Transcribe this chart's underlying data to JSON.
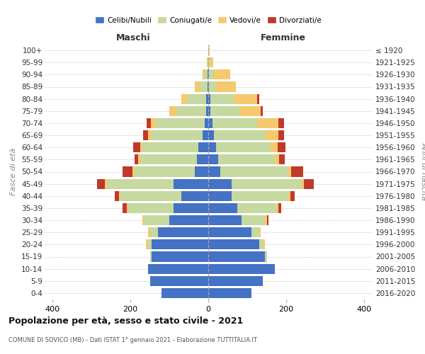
{
  "age_groups": [
    "0-4",
    "5-9",
    "10-14",
    "15-19",
    "20-24",
    "25-29",
    "30-34",
    "35-39",
    "40-44",
    "45-49",
    "50-54",
    "55-59",
    "60-64",
    "65-69",
    "70-74",
    "75-79",
    "80-84",
    "85-89",
    "90-94",
    "95-99",
    "100+"
  ],
  "birth_years": [
    "2016-2020",
    "2011-2015",
    "2006-2010",
    "2001-2005",
    "1996-2000",
    "1991-1995",
    "1986-1990",
    "1981-1985",
    "1976-1980",
    "1971-1975",
    "1966-1970",
    "1961-1965",
    "1956-1960",
    "1951-1955",
    "1946-1950",
    "1941-1945",
    "1936-1940",
    "1931-1935",
    "1926-1930",
    "1921-1925",
    "≤ 1920"
  ],
  "maschi": {
    "celibi": [
      120,
      150,
      155,
      145,
      145,
      130,
      100,
      90,
      70,
      90,
      35,
      30,
      25,
      15,
      10,
      5,
      5,
      2,
      2,
      0,
      0
    ],
    "coniugati": [
      0,
      0,
      0,
      5,
      10,
      20,
      65,
      115,
      155,
      170,
      155,
      145,
      145,
      130,
      125,
      75,
      50,
      18,
      5,
      2,
      0
    ],
    "vedovi": [
      0,
      0,
      0,
      0,
      5,
      5,
      5,
      5,
      5,
      5,
      5,
      5,
      5,
      10,
      12,
      20,
      15,
      15,
      8,
      2,
      0
    ],
    "divorziati": [
      0,
      0,
      0,
      0,
      0,
      0,
      0,
      10,
      10,
      20,
      25,
      10,
      18,
      12,
      12,
      0,
      0,
      0,
      0,
      0,
      0
    ]
  },
  "femmine": {
    "nubili": [
      110,
      140,
      170,
      145,
      130,
      110,
      85,
      75,
      60,
      60,
      30,
      25,
      20,
      15,
      10,
      5,
      5,
      2,
      2,
      0,
      0
    ],
    "coniugate": [
      0,
      0,
      0,
      5,
      10,
      20,
      60,
      100,
      145,
      180,
      175,
      145,
      140,
      130,
      115,
      75,
      60,
      18,
      12,
      2,
      0
    ],
    "vedove": [
      0,
      0,
      0,
      0,
      5,
      5,
      5,
      5,
      5,
      5,
      8,
      12,
      18,
      35,
      55,
      55,
      60,
      50,
      42,
      10,
      3
    ],
    "divorziate": [
      0,
      0,
      0,
      0,
      0,
      0,
      5,
      8,
      12,
      25,
      30,
      15,
      20,
      15,
      15,
      5,
      5,
      0,
      0,
      0,
      0
    ]
  },
  "colors": {
    "celibi": "#4472c4",
    "coniugati": "#c5d9a0",
    "vedovi": "#f5c96e",
    "divorziati": "#c0392b"
  },
  "title": "Popolazione per età, sesso e stato civile - 2021",
  "subtitle": "COMUNE DI SOVICO (MB) - Dati ISTAT 1° gennaio 2021 - Elaborazione TUTTITALIA.IT",
  "ylabel_left": "Fasce di età",
  "ylabel_right": "Anni di nascita",
  "xlabel_left": "Maschi",
  "xlabel_right": "Femmine",
  "xlim": 420,
  "background_color": "#ffffff",
  "grid_color": "#cccccc"
}
